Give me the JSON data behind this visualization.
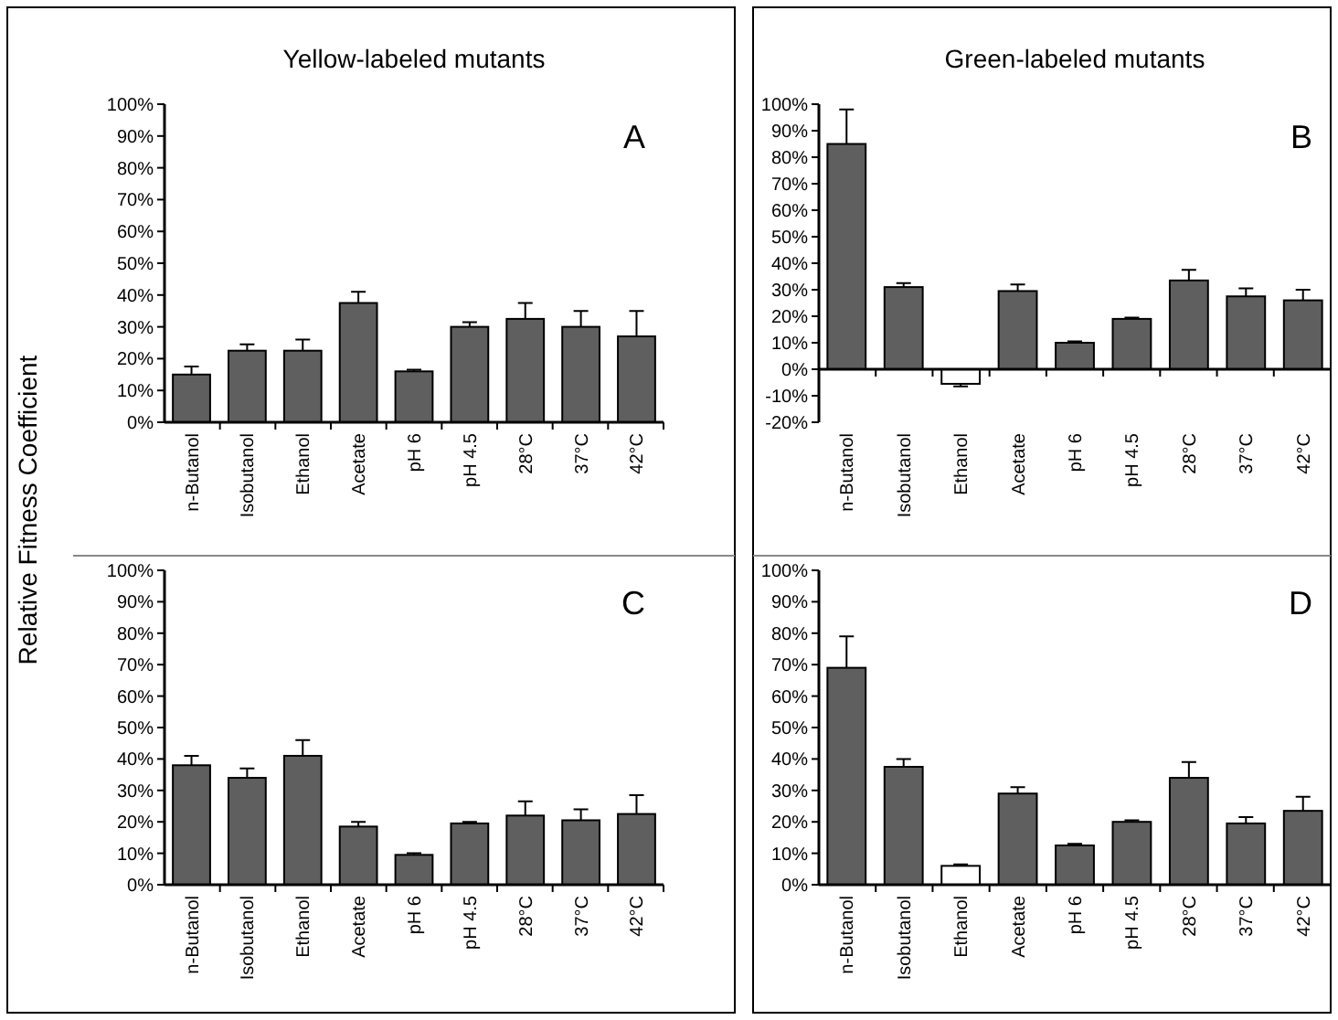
{
  "chart_data": [
    {
      "type": "bar",
      "title": "Yellow-labeled mutants",
      "ylabel": "Relative Fitness Coefficient",
      "annotations": [
        "A"
      ],
      "categories": [
        "n-Butanol",
        "Isobutanol",
        "Ethanol",
        "Acetate",
        "pH 6",
        "pH 4.5",
        "28°C",
        "37°C",
        "42°C"
      ],
      "values": [
        15,
        22.5,
        22.5,
        37.5,
        16,
        30,
        32.5,
        30,
        27
      ],
      "errors": [
        [
          15,
          17.5
        ],
        [
          22.5,
          24.5
        ],
        [
          22.5,
          26
        ],
        [
          37.5,
          41
        ],
        [
          16,
          16.5
        ],
        [
          30,
          31.5
        ],
        [
          32.5,
          37.5
        ],
        [
          30,
          35
        ],
        [
          27,
          35
        ]
      ],
      "colors": [
        "#5f5f5f",
        "#5f5f5f",
        "#5f5f5f",
        "#5f5f5f",
        "#5f5f5f",
        "#5f5f5f",
        "#5f5f5f",
        "#5f5f5f",
        "#5f5f5f"
      ],
      "ylim": [
        0,
        100
      ],
      "yticks": [
        {
          "value": 0,
          "label": "0%"
        },
        {
          "value": 10,
          "label": "10%"
        },
        {
          "value": 20,
          "label": "20%"
        },
        {
          "value": 30,
          "label": "30%"
        },
        {
          "value": 40,
          "label": "40%"
        },
        {
          "value": 50,
          "label": "50%"
        },
        {
          "value": 60,
          "label": "60%"
        },
        {
          "value": 70,
          "label": "70%"
        },
        {
          "value": 80,
          "label": "80%"
        },
        {
          "value": 90,
          "label": "90%"
        },
        {
          "value": 100,
          "label": "100%"
        }
      ]
    },
    {
      "type": "bar",
      "title": "Green-labeled mutants",
      "annotations": [
        "B"
      ],
      "categories": [
        "n-Butanol",
        "Isobutanol",
        "Ethanol",
        "Acetate",
        "pH 6",
        "pH 4.5",
        "28°C",
        "37°C",
        "42°C"
      ],
      "values": [
        85,
        31,
        -5.5,
        29.5,
        10,
        19,
        33.5,
        27.5,
        26
      ],
      "errors": [
        [
          85,
          98
        ],
        [
          31,
          32.5
        ],
        [
          -6.5,
          -5.5
        ],
        [
          29.5,
          32
        ],
        [
          10,
          10.5
        ],
        [
          19,
          19.5
        ],
        [
          33.5,
          37.5
        ],
        [
          27.5,
          30.5
        ],
        [
          26,
          30
        ]
      ],
      "colors": [
        "#5f5f5f",
        "#5f5f5f",
        "#ffffff",
        "#5f5f5f",
        "#5f5f5f",
        "#5f5f5f",
        "#5f5f5f",
        "#5f5f5f",
        "#5f5f5f"
      ],
      "ylim": [
        -20,
        100
      ],
      "yticks": [
        {
          "value": -20,
          "label": "-20%"
        },
        {
          "value": -10,
          "label": "-10%"
        },
        {
          "value": 0,
          "label": "0%"
        },
        {
          "value": 10,
          "label": "10%"
        },
        {
          "value": 20,
          "label": "20%"
        },
        {
          "value": 30,
          "label": "30%"
        },
        {
          "value": 40,
          "label": "40%"
        },
        {
          "value": 50,
          "label": "50%"
        },
        {
          "value": 60,
          "label": "60%"
        },
        {
          "value": 70,
          "label": "70%"
        },
        {
          "value": 80,
          "label": "80%"
        },
        {
          "value": 90,
          "label": "90%"
        },
        {
          "value": 100,
          "label": "100%"
        }
      ]
    },
    {
      "type": "bar",
      "annotations": [
        "C"
      ],
      "categories": [
        "n-Butanol",
        "Isobutanol",
        "Ethanol",
        "Acetate",
        "pH 6",
        "pH 4.5",
        "28°C",
        "37°C",
        "42°C"
      ],
      "values": [
        38,
        34,
        41,
        18.5,
        9.5,
        19.5,
        22,
        20.5,
        22.5
      ],
      "errors": [
        [
          38,
          41
        ],
        [
          34,
          37
        ],
        [
          41,
          46
        ],
        [
          18.5,
          20
        ],
        [
          9.5,
          10
        ],
        [
          19.5,
          20
        ],
        [
          22,
          26.5
        ],
        [
          20.5,
          24
        ],
        [
          22.5,
          28.5
        ]
      ],
      "colors": [
        "#5f5f5f",
        "#5f5f5f",
        "#5f5f5f",
        "#5f5f5f",
        "#5f5f5f",
        "#5f5f5f",
        "#5f5f5f",
        "#5f5f5f",
        "#5f5f5f"
      ],
      "ylim": [
        0,
        100
      ],
      "yticks": [
        {
          "value": 0,
          "label": "0%"
        },
        {
          "value": 10,
          "label": "10%"
        },
        {
          "value": 20,
          "label": "20%"
        },
        {
          "value": 30,
          "label": "30%"
        },
        {
          "value": 40,
          "label": "40%"
        },
        {
          "value": 50,
          "label": "50%"
        },
        {
          "value": 60,
          "label": "60%"
        },
        {
          "value": 70,
          "label": "70%"
        },
        {
          "value": 80,
          "label": "80%"
        },
        {
          "value": 90,
          "label": "90%"
        },
        {
          "value": 100,
          "label": "100%"
        }
      ]
    },
    {
      "type": "bar",
      "annotations": [
        "D"
      ],
      "categories": [
        "n-Butanol",
        "Isobutanol",
        "Ethanol",
        "Acetate",
        "pH 6",
        "pH 4.5",
        "28°C",
        "37°C",
        "42°C"
      ],
      "values": [
        69,
        37.5,
        6,
        29,
        12.5,
        20,
        34,
        19.5,
        23.5
      ],
      "errors": [
        [
          69,
          79
        ],
        [
          37.5,
          40
        ],
        [
          6,
          6.5
        ],
        [
          29,
          31
        ],
        [
          12.5,
          13
        ],
        [
          20,
          20.5
        ],
        [
          34,
          39
        ],
        [
          19.5,
          21.5
        ],
        [
          23.5,
          28
        ]
      ],
      "colors": [
        "#5f5f5f",
        "#5f5f5f",
        "#ffffff",
        "#5f5f5f",
        "#5f5f5f",
        "#5f5f5f",
        "#5f5f5f",
        "#5f5f5f",
        "#5f5f5f"
      ],
      "ylim": [
        0,
        100
      ],
      "yticks": [
        {
          "value": 0,
          "label": "0%"
        },
        {
          "value": 10,
          "label": "10%"
        },
        {
          "value": 20,
          "label": "20%"
        },
        {
          "value": 30,
          "label": "30%"
        },
        {
          "value": 40,
          "label": "40%"
        },
        {
          "value": 50,
          "label": "50%"
        },
        {
          "value": 60,
          "label": "60%"
        },
        {
          "value": 70,
          "label": "70%"
        },
        {
          "value": 80,
          "label": "80%"
        },
        {
          "value": 90,
          "label": "90%"
        },
        {
          "value": 100,
          "label": "100%"
        }
      ]
    }
  ]
}
